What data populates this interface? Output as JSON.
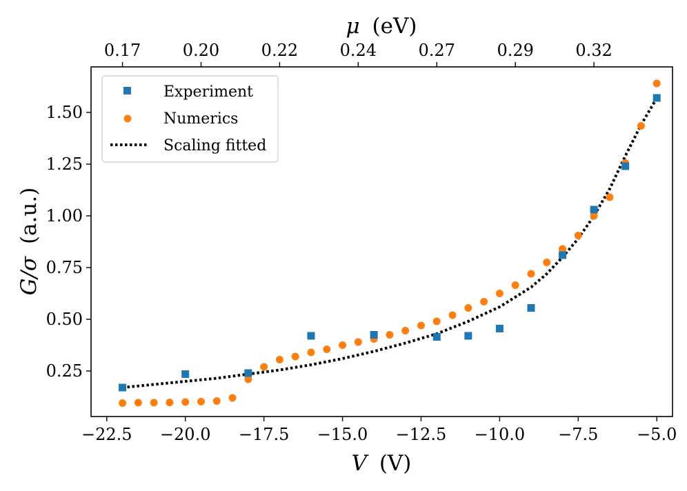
{
  "chart_data": {
    "type": "scatter",
    "xlabel_var": "V",
    "xlabel_unit": "(V)",
    "ylabel_var": "G/σ",
    "ylabel_unit": "(a.u.)",
    "top_xlabel_var": "μ",
    "top_xlabel_unit": "(eV)",
    "xlim": [
      -23.0,
      -4.5
    ],
    "ylim": [
      0.03,
      1.72
    ],
    "x_ticks": [
      -22.5,
      -20.0,
      -17.5,
      -15.0,
      -12.5,
      -10.0,
      -7.5,
      -5.0
    ],
    "x_tick_labels": [
      "−22.5",
      "−20.0",
      "−17.5",
      "−15.0",
      "−12.5",
      "−10.0",
      "−7.5",
      "−5.0"
    ],
    "y_ticks": [
      0.25,
      0.5,
      0.75,
      1.0,
      1.25,
      1.5
    ],
    "y_tick_labels": [
      "0.25",
      "0.50",
      "0.75",
      "1.00",
      "1.25",
      "1.50"
    ],
    "top_ticks_v": [
      -22.0,
      -19.5,
      -17.0,
      -14.5,
      -12.0,
      -9.5,
      -7.0
    ],
    "top_tick_labels": [
      "0.17",
      "0.20",
      "0.22",
      "0.24",
      "0.27",
      "0.29",
      "0.32"
    ],
    "legend_position": "upper-left",
    "series": [
      {
        "name": "Experiment",
        "marker": "square",
        "color": "#1f77b4",
        "x": [
          -22,
          -20,
          -18,
          -16,
          -14,
          -12,
          -11,
          -10,
          -9,
          -8,
          -7,
          -6,
          -5
        ],
        "y": [
          0.17,
          0.235,
          0.24,
          0.42,
          0.425,
          0.415,
          0.42,
          0.455,
          0.555,
          0.81,
          1.03,
          1.24,
          1.57
        ]
      },
      {
        "name": "Numerics",
        "marker": "circle",
        "color": "#ff7f0e",
        "x": [
          -22,
          -21.5,
          -21,
          -20.5,
          -20,
          -19.5,
          -19,
          -18.5,
          -18,
          -17.5,
          -17,
          -16.5,
          -16,
          -15.5,
          -15,
          -14.5,
          -14,
          -13.5,
          -13,
          -12.5,
          -12,
          -11.5,
          -11,
          -10.5,
          -10,
          -9.5,
          -9,
          -8.5,
          -8,
          -7.5,
          -7,
          -6.5,
          -6,
          -5.5,
          -5
        ],
        "y": [
          0.095,
          0.097,
          0.097,
          0.098,
          0.1,
          0.102,
          0.105,
          0.12,
          0.21,
          0.27,
          0.305,
          0.32,
          0.34,
          0.355,
          0.375,
          0.39,
          0.405,
          0.425,
          0.445,
          0.47,
          0.49,
          0.52,
          0.555,
          0.585,
          0.625,
          0.665,
          0.72,
          0.775,
          0.84,
          0.905,
          1.0,
          1.09,
          1.255,
          1.435,
          1.64
        ]
      },
      {
        "name": "Scaling fitted",
        "marker": "dotted-line",
        "color": "#000000",
        "x": [
          -22,
          -21,
          -20,
          -19,
          -18,
          -17,
          -16,
          -15,
          -14,
          -13,
          -12,
          -11,
          -10,
          -9,
          -8.5,
          -8,
          -7.5,
          -7,
          -6.5,
          -6,
          -5.5,
          -5
        ],
        "y": [
          0.17,
          0.185,
          0.2,
          0.215,
          0.235,
          0.255,
          0.28,
          0.31,
          0.345,
          0.385,
          0.43,
          0.49,
          0.56,
          0.655,
          0.72,
          0.8,
          0.89,
          1.0,
          1.13,
          1.29,
          1.44,
          1.57
        ]
      }
    ]
  }
}
